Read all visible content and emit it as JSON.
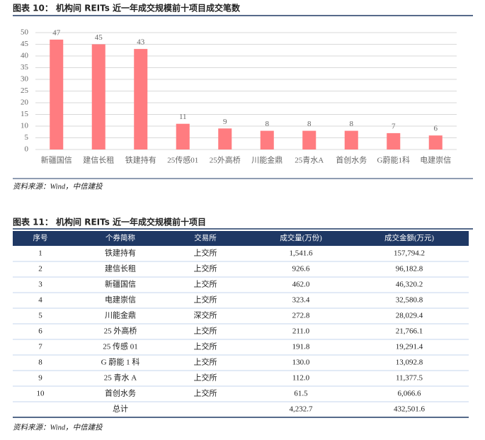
{
  "chart_data": {
    "type": "bar",
    "title": "图表 10：  机构间 REITs 近一年成交规模前十项目成交笔数",
    "categories": [
      "新疆国信",
      "建信长租",
      "铁建持有",
      "25传感01",
      "25外高桥",
      "川能金鼎",
      "25青水A",
      "首创水务",
      "G蔚能1科",
      "电建崇信"
    ],
    "values": [
      47,
      45,
      43,
      11,
      9,
      8,
      8,
      8,
      7,
      6
    ],
    "color": "#ff7c80",
    "ylim": [
      0,
      50
    ],
    "yticks": [
      0,
      5,
      10,
      15,
      20,
      25,
      30,
      35,
      40,
      45,
      50
    ],
    "grid": true,
    "source": "资料来源：Wind，中信建投"
  },
  "table": {
    "title": "图表 11：  机构间 REITs 近一年成交规模前十项目",
    "columns": [
      "序号",
      "个券简称",
      "交易所",
      "成交量(万份)",
      "成交金额(万元)"
    ],
    "rows": [
      [
        "1",
        "铁建持有",
        "上交所",
        "1,541.6",
        "157,794.2"
      ],
      [
        "2",
        "建信长租",
        "上交所",
        "926.6",
        "96,182.8"
      ],
      [
        "3",
        "新疆国信",
        "上交所",
        "462.0",
        "46,320.2"
      ],
      [
        "4",
        "电建崇信",
        "上交所",
        "323.4",
        "32,580.8"
      ],
      [
        "5",
        "川能金鼎",
        "深交所",
        "272.8",
        "28,029.4"
      ],
      [
        "6",
        "25 外高桥",
        "上交所",
        "211.0",
        "21,766.1"
      ],
      [
        "7",
        "25 传感 01",
        "上交所",
        "191.8",
        "19,291.4"
      ],
      [
        "8",
        "G 蔚能 1 科",
        "上交所",
        "130.0",
        "13,092.8"
      ],
      [
        "9",
        "25 青水 A",
        "上交所",
        "112.0",
        "11,377.5"
      ],
      [
        "10",
        "首创水务",
        "上交所",
        "61.5",
        "6,066.6"
      ]
    ],
    "total": {
      "label": "总计",
      "volume": "4,232.7",
      "amount": "432,501.6"
    },
    "source": "资料来源：Wind，中信建投"
  }
}
